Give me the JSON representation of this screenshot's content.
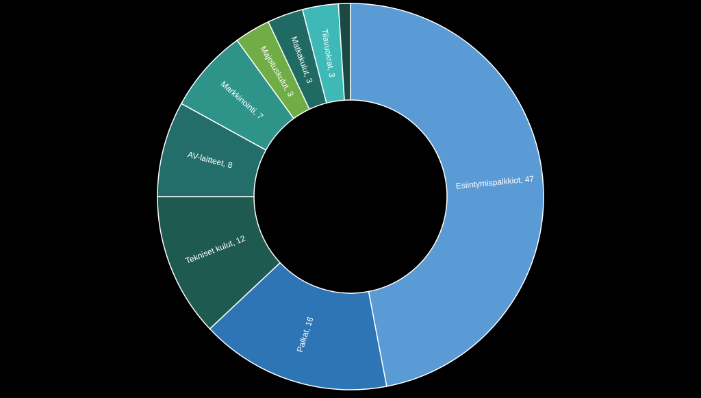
{
  "chart_data": {
    "type": "pie",
    "variant": "donut",
    "start": "12 o'clock",
    "direction": "clockwise",
    "slices": [
      {
        "label": "Esiintymispalkkiot",
        "value": 47,
        "color": "#5b9bd5",
        "text": "Esiintymispalkkiot, 47"
      },
      {
        "label": "Palkat",
        "value": 16,
        "color": "#2e75b6",
        "text": "Palkat, 16"
      },
      {
        "label": "Tekniset kulut",
        "value": 12,
        "color": "#1f5a50",
        "text": "Tekniset kulut, 12"
      },
      {
        "label": "AV-laitteet",
        "value": 8,
        "color": "#236e6a",
        "text": "AV-laitteet, 8"
      },
      {
        "label": "Markkinointi",
        "value": 7,
        "color": "#2e948a",
        "text": "Markkinointi, 7"
      },
      {
        "label": "Majoituskulut",
        "value": 3,
        "color": "#70ad47",
        "text": "Majoituskulut, 3"
      },
      {
        "label": "Matkakulut",
        "value": 3,
        "color": "#1f6b63",
        "text": "Matkakulut, 3"
      },
      {
        "label": "Tilavuokrat",
        "value": 3,
        "color": "#3fb8b8",
        "text": "Tilavuokrat, 3"
      },
      {
        "label": "",
        "value": 1,
        "color": "#1b4a45",
        "text": ""
      }
    ]
  }
}
